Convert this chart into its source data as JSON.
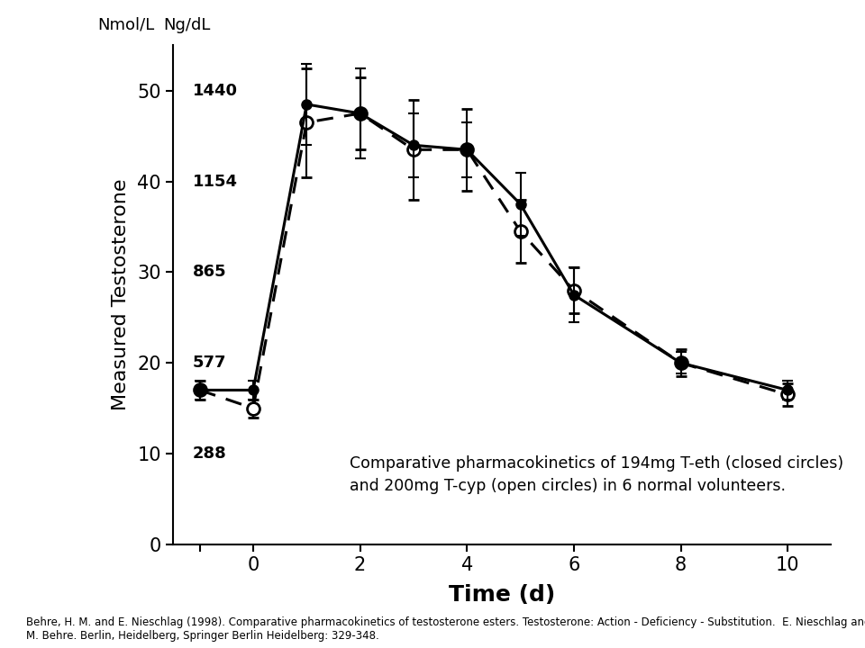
{
  "closed_x": [
    -1,
    0,
    1,
    2,
    3,
    4,
    5,
    6,
    8,
    10
  ],
  "closed_y": [
    17.0,
    17.0,
    48.5,
    47.5,
    44.0,
    43.5,
    37.5,
    27.5,
    20.0,
    17.0
  ],
  "closed_yerr": [
    1.0,
    1.0,
    4.5,
    5.0,
    3.5,
    3.0,
    3.5,
    3.0,
    1.2,
    1.0
  ],
  "open_x": [
    -1,
    0,
    1,
    2,
    3,
    4,
    5,
    6,
    8,
    10
  ],
  "open_y": [
    17.0,
    15.0,
    46.5,
    47.5,
    43.5,
    43.5,
    34.5,
    28.0,
    20.0,
    16.5
  ],
  "open_yerr": [
    1.0,
    1.0,
    6.0,
    4.0,
    5.5,
    4.5,
    3.5,
    2.5,
    1.5,
    1.2
  ],
  "ylim": [
    0,
    55
  ],
  "xlim": [
    -1.5,
    10.8
  ],
  "yticks": [
    0,
    10,
    20,
    30,
    40,
    50
  ],
  "xticks": [
    0,
    2,
    4,
    6,
    8,
    10
  ],
  "right_tick_y": [
    10,
    20,
    30,
    40,
    50
  ],
  "right_labels": [
    "288",
    "577",
    "865",
    "1154",
    "1440"
  ],
  "ylabel": "Measured Testosterone",
  "xlabel": "Time (d)",
  "left_unit": "Nmol/L",
  "right_unit": "Ng/dL",
  "annotation_line1": "Comparative pharmacokinetics of 194mg T-eth (closed circles)",
  "annotation_line2": "and 200mg T-cyp (open circles) in 6 normal volunteers.",
  "footnote": "Behre, H. M. and E. Nieschlag (1998). Comparative pharmacokinetics of testosterone esters. Testosterone: Action - Deficiency - Substitution.  E. Nieschlag and H.\nM. Behre. Berlin, Heidelberg, Springer Berlin Heidelberg: 329-348.",
  "bg_color": "#ffffff",
  "line_color": "#000000"
}
